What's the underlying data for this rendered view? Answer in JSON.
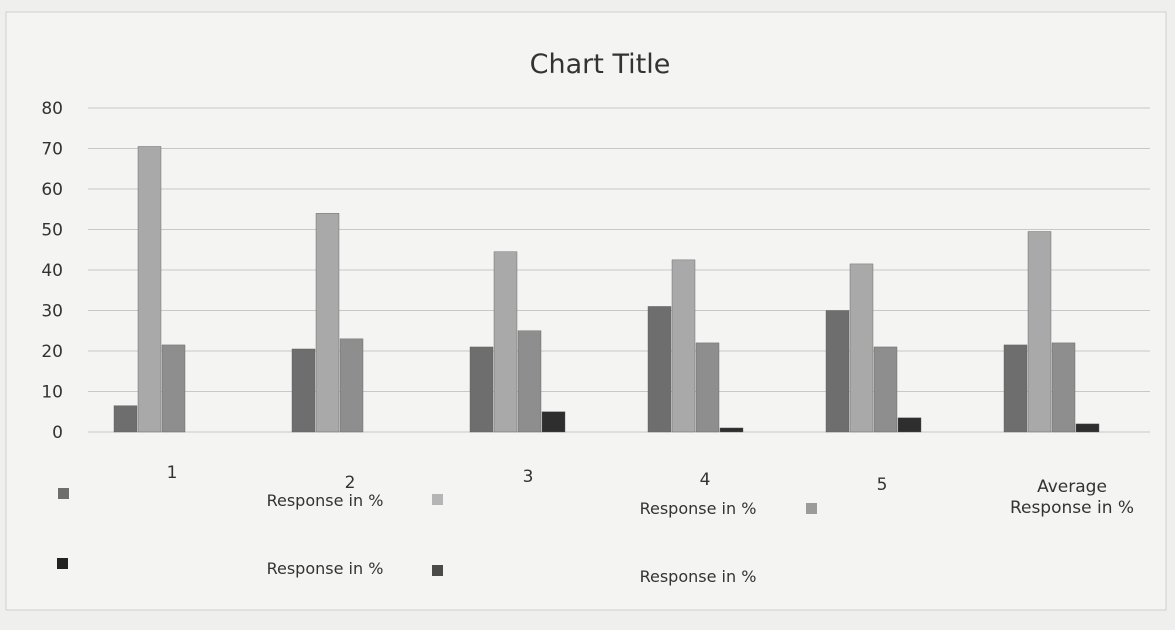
{
  "chart_data": {
    "type": "bar",
    "title": "Chart Title",
    "categories": [
      "1",
      "2",
      "3",
      "4",
      "5",
      "Average\nResponse in %"
    ],
    "series": [
      {
        "name": "",
        "color": "#6e6e6e",
        "values": [
          6.5,
          20.5,
          21,
          31,
          30,
          21.5
        ]
      },
      {
        "name": "",
        "color": "#a9a9a9",
        "values": [
          70.5,
          54,
          44.5,
          42.5,
          41.5,
          49.5
        ]
      },
      {
        "name": "",
        "color": "#8e8e8e",
        "values": [
          21.5,
          23,
          25,
          22,
          21,
          22
        ]
      },
      {
        "name": "",
        "color": "#2e2e2e",
        "values": [
          0,
          0,
          5,
          1,
          3.5,
          2
        ]
      }
    ],
    "ylim": [
      0,
      80
    ],
    "yticks": [
      0,
      10,
      20,
      30,
      40,
      50,
      60,
      70,
      80
    ],
    "grid": true,
    "legend": {
      "position": "bottom",
      "entries": [
        {
          "label": "",
          "color": "#6e6e6e"
        },
        {
          "label": "Response in %",
          "color": "#b5b5b5"
        },
        {
          "label": "Response in %",
          "color": "#9b9b9b"
        },
        {
          "label": "",
          "color": "#222222"
        },
        {
          "label": "Response in %",
          "color": "#4a4a4a"
        },
        {
          "label": "Response in %",
          "color": ""
        }
      ]
    }
  }
}
